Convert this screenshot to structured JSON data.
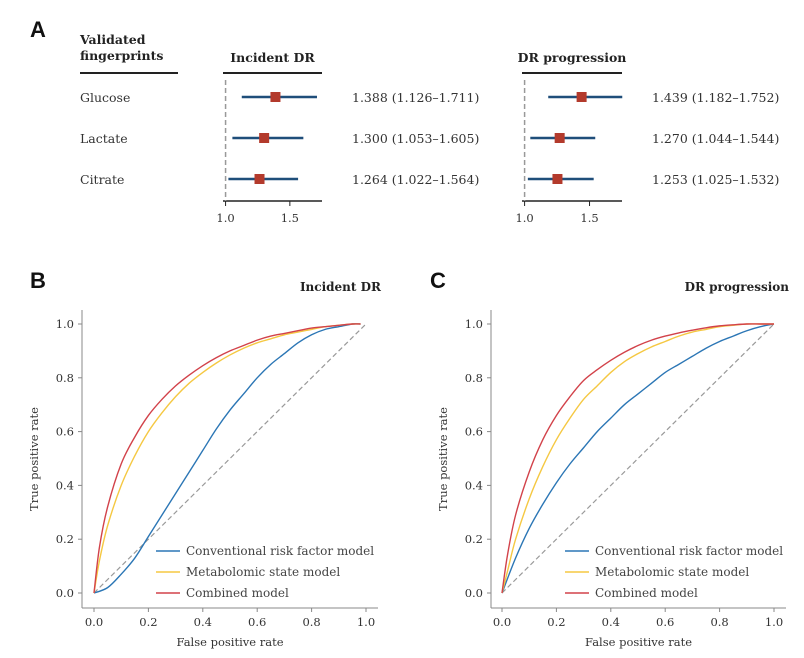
{
  "colors": {
    "blue": "#2b76b5",
    "yellow": "#f5c842",
    "red": "#d2424a",
    "forest_line": "#1f4e7a",
    "forest_marker": "#b33a2c",
    "diagonal": "#999999"
  },
  "panel_a": {
    "letter": "A",
    "header_line1": "Validated",
    "header_line2": "fingerprints",
    "forest_ticks": [
      "1.0",
      "1.5"
    ],
    "rows": [
      "Glucose",
      "Lactate",
      "Citrate"
    ]
  },
  "chart_data": [
    {
      "type": "forest",
      "title": "Incident DR",
      "ref_line": 1.0,
      "xlim": [
        0.98,
        1.75
      ],
      "xticks": [
        1.0,
        1.5
      ],
      "rows": [
        {
          "label": "Glucose",
          "estimate": 1.388,
          "lower": 1.126,
          "upper": 1.711,
          "text": "1.388 (1.126–1.711)"
        },
        {
          "label": "Lactate",
          "estimate": 1.3,
          "lower": 1.053,
          "upper": 1.605,
          "text": "1.300 (1.053–1.605)"
        },
        {
          "label": "Citrate",
          "estimate": 1.264,
          "lower": 1.022,
          "upper": 1.564,
          "text": "1.264 (1.022–1.564)"
        }
      ]
    },
    {
      "type": "forest",
      "title": "DR progression",
      "ref_line": 1.0,
      "xlim": [
        0.98,
        1.75
      ],
      "xticks": [
        1.0,
        1.5
      ],
      "rows": [
        {
          "label": "Glucose",
          "estimate": 1.439,
          "lower": 1.182,
          "upper": 1.752,
          "text": "1.439 (1.182–1.752)"
        },
        {
          "label": "Lactate",
          "estimate": 1.27,
          "lower": 1.044,
          "upper": 1.544,
          "text": "1.270 (1.044–1.544)"
        },
        {
          "label": "Citrate",
          "estimate": 1.253,
          "lower": 1.025,
          "upper": 1.532,
          "text": "1.253 (1.025–1.532)"
        }
      ]
    },
    {
      "type": "line",
      "letter": "B",
      "title": "Incident DR",
      "xlabel": "False positive rate",
      "ylabel": "True positive rate",
      "xlim": [
        0,
        1.0
      ],
      "ylim": [
        0,
        1.0
      ],
      "xticks": [
        "0.0",
        "0.2",
        "0.4",
        "0.6",
        "0.8",
        "1.0"
      ],
      "yticks": [
        "0.0",
        "0.2",
        "0.4",
        "0.6",
        "0.8",
        "1.0"
      ],
      "series": [
        {
          "name": "Conventional risk factor model",
          "color_key": "blue",
          "x": [
            0,
            0.05,
            0.1,
            0.15,
            0.2,
            0.25,
            0.3,
            0.35,
            0.4,
            0.45,
            0.5,
            0.55,
            0.6,
            0.65,
            0.7,
            0.75,
            0.8,
            0.85,
            0.9,
            0.95,
            0.98
          ],
          "y": [
            0,
            0.02,
            0.07,
            0.13,
            0.21,
            0.29,
            0.37,
            0.45,
            0.53,
            0.61,
            0.68,
            0.74,
            0.8,
            0.85,
            0.89,
            0.93,
            0.96,
            0.98,
            0.99,
            1.0,
            1.0
          ]
        },
        {
          "name": "Metabolomic state model",
          "color_key": "yellow",
          "x": [
            0,
            0.02,
            0.05,
            0.1,
            0.15,
            0.2,
            0.25,
            0.3,
            0.35,
            0.4,
            0.45,
            0.5,
            0.55,
            0.6,
            0.65,
            0.7,
            0.75,
            0.8,
            0.85,
            0.9,
            0.95,
            0.98
          ],
          "y": [
            0,
            0.12,
            0.25,
            0.4,
            0.51,
            0.6,
            0.67,
            0.73,
            0.78,
            0.82,
            0.855,
            0.885,
            0.91,
            0.93,
            0.945,
            0.96,
            0.97,
            0.98,
            0.99,
            0.995,
            1.0,
            1.0
          ]
        },
        {
          "name": "Combined model",
          "color_key": "red",
          "x": [
            0,
            0.02,
            0.05,
            0.1,
            0.15,
            0.2,
            0.25,
            0.3,
            0.35,
            0.4,
            0.45,
            0.5,
            0.55,
            0.6,
            0.65,
            0.7,
            0.75,
            0.8,
            0.85,
            0.9,
            0.95,
            0.98
          ],
          "y": [
            0,
            0.17,
            0.32,
            0.48,
            0.58,
            0.66,
            0.72,
            0.77,
            0.81,
            0.845,
            0.875,
            0.9,
            0.92,
            0.94,
            0.955,
            0.965,
            0.975,
            0.985,
            0.99,
            0.995,
            1.0,
            1.0
          ]
        }
      ],
      "diagonal": true,
      "legend_position": "bottom-right"
    },
    {
      "type": "line",
      "letter": "C",
      "title": "DR progression",
      "xlabel": "False positive rate",
      "ylabel": "True positive rate",
      "xlim": [
        0,
        1.0
      ],
      "ylim": [
        0,
        1.0
      ],
      "xticks": [
        "0.0",
        "0.2",
        "0.4",
        "0.6",
        "0.8",
        "1.0"
      ],
      "yticks": [
        "0.0",
        "0.2",
        "0.4",
        "0.6",
        "0.8",
        "1.0"
      ],
      "series": [
        {
          "name": "Conventional risk factor model",
          "color_key": "blue",
          "x": [
            0,
            0.05,
            0.1,
            0.15,
            0.2,
            0.25,
            0.3,
            0.35,
            0.4,
            0.45,
            0.5,
            0.55,
            0.6,
            0.65,
            0.7,
            0.75,
            0.8,
            0.85,
            0.9,
            0.95,
            1.0
          ],
          "y": [
            0,
            0.13,
            0.24,
            0.33,
            0.41,
            0.48,
            0.54,
            0.6,
            0.65,
            0.7,
            0.74,
            0.78,
            0.82,
            0.85,
            0.88,
            0.91,
            0.935,
            0.955,
            0.975,
            0.99,
            1.0
          ]
        },
        {
          "name": "Metabolomic state model",
          "color_key": "yellow",
          "x": [
            0,
            0.02,
            0.05,
            0.1,
            0.15,
            0.2,
            0.25,
            0.3,
            0.35,
            0.4,
            0.45,
            0.5,
            0.55,
            0.6,
            0.65,
            0.7,
            0.75,
            0.8,
            0.85,
            0.9,
            0.95,
            1.0
          ],
          "y": [
            0,
            0.08,
            0.2,
            0.35,
            0.47,
            0.57,
            0.65,
            0.72,
            0.77,
            0.82,
            0.86,
            0.89,
            0.915,
            0.935,
            0.955,
            0.97,
            0.98,
            0.99,
            0.995,
            1.0,
            1.0,
            1.0
          ]
        },
        {
          "name": "Combined model",
          "color_key": "red",
          "x": [
            0,
            0.02,
            0.05,
            0.1,
            0.15,
            0.2,
            0.25,
            0.3,
            0.35,
            0.4,
            0.45,
            0.5,
            0.55,
            0.6,
            0.65,
            0.7,
            0.75,
            0.8,
            0.85,
            0.9,
            0.95,
            1.0
          ],
          "y": [
            0,
            0.14,
            0.29,
            0.45,
            0.57,
            0.66,
            0.73,
            0.79,
            0.83,
            0.865,
            0.895,
            0.92,
            0.94,
            0.955,
            0.967,
            0.977,
            0.986,
            0.993,
            0.997,
            1.0,
            1.0,
            1.0
          ]
        }
      ],
      "diagonal": true,
      "legend_position": "bottom-right"
    }
  ]
}
